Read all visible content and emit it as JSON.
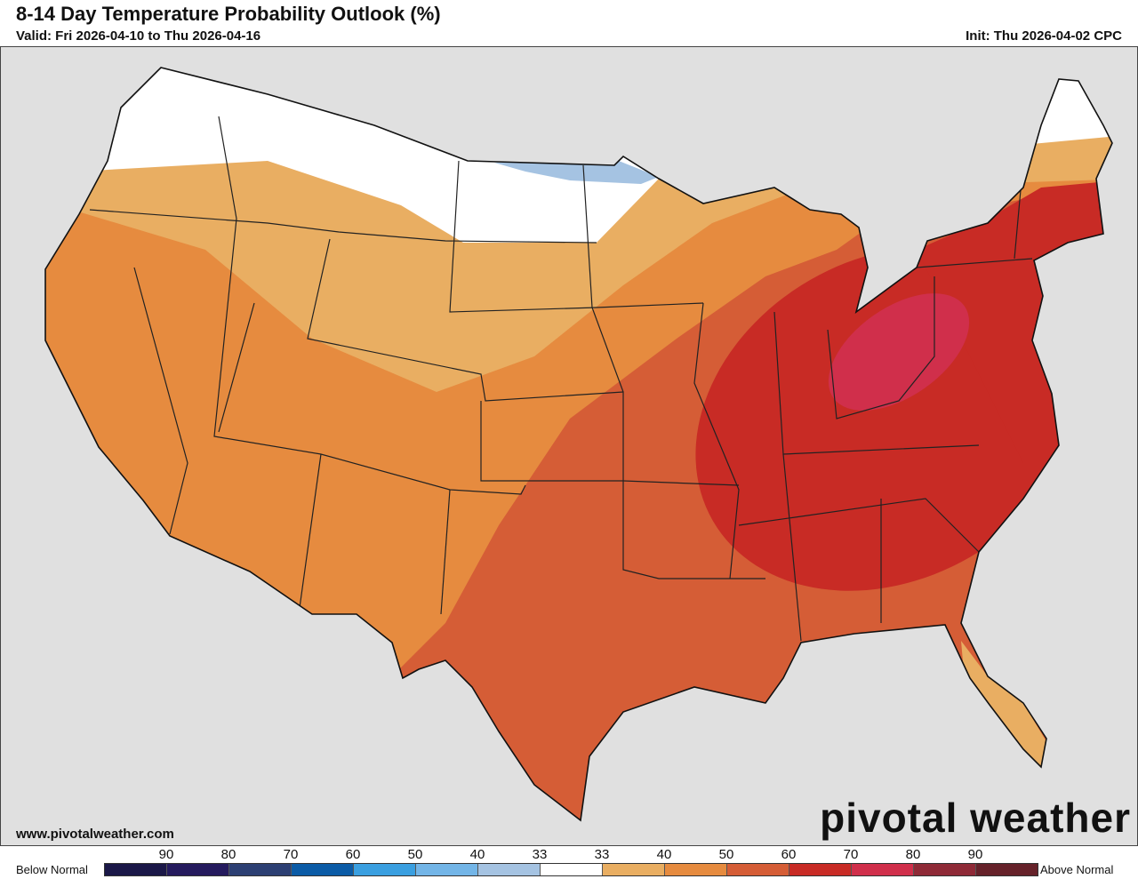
{
  "header": {
    "title": "8-14 Day Temperature Probability Outlook (%)",
    "valid": "Valid: Fri 2026-04-10 to Thu 2026-04-16",
    "init": "Init: Thu 2026-04-02 CPC"
  },
  "footer": {
    "url": "www.pivotalweather.com",
    "logo": "pivotal weather"
  },
  "legend": {
    "below_label": "Below Normal",
    "above_label": "Above Normal",
    "ticks": [
      "90",
      "80",
      "70",
      "60",
      "50",
      "40",
      "33",
      "33",
      "40",
      "50",
      "60",
      "70",
      "80",
      "90"
    ],
    "colors": [
      "#1b1848",
      "#251b5e",
      "#2c3f73",
      "#0b5ba6",
      "#3a9fe0",
      "#73b5e7",
      "#a5c3e2",
      "#ffffff",
      "#e9ae62",
      "#e68b3f",
      "#d55d36",
      "#c82b25",
      "#d02f4b",
      "#8f2a37",
      "#66222a"
    ]
  },
  "map": {
    "land_outside": "#e0e0e0",
    "water": "#ffffff",
    "categories": [
      {
        "category": "Near Normal",
        "color": "#ffffff"
      },
      {
        "category": "Below 33-40",
        "color": "#a5c3e2"
      },
      {
        "category": "Above 33-40",
        "color": "#e9ae62"
      },
      {
        "category": "Above 40-50",
        "color": "#e68b3f"
      },
      {
        "category": "Above 50-60",
        "color": "#d55d36"
      },
      {
        "category": "Above 60-70",
        "color": "#c82b25"
      },
      {
        "category": "Above 70-80",
        "color": "#d02f4b"
      }
    ]
  }
}
